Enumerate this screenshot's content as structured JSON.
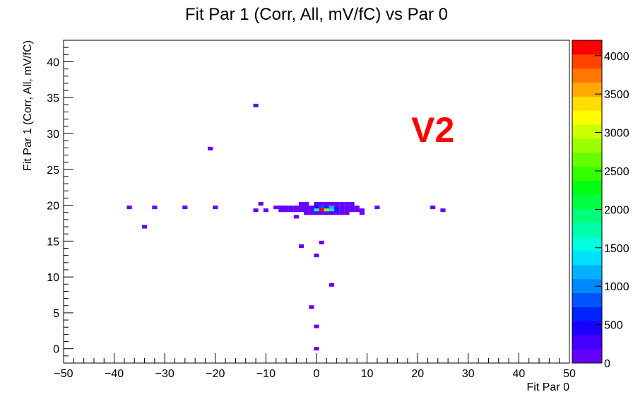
{
  "chart_data": {
    "type": "heatmap",
    "title": "Fit Par 1 (Corr, All, mV/fC) vs Par 0",
    "xlabel": "Fit Par 0",
    "ylabel": "Fit Par 1 (Corr, All, mV/fC)",
    "xlim": [
      -50,
      50
    ],
    "ylim": [
      -2,
      43
    ],
    "x_ticks": [
      -50,
      -40,
      -30,
      -20,
      -10,
      0,
      10,
      20,
      30,
      40,
      50
    ],
    "y_ticks": [
      0,
      5,
      10,
      15,
      20,
      25,
      30,
      35,
      40
    ],
    "x_tick_labels": [
      "−50",
      "−40",
      "−30",
      "−20",
      "−10",
      "0",
      "10",
      "20",
      "30",
      "40",
      "50"
    ],
    "y_tick_labels": [
      "0",
      "5",
      "10",
      "15",
      "20",
      "25",
      "30",
      "35",
      "40"
    ],
    "annotation": {
      "text": "V2",
      "x": 23,
      "y": 30.5,
      "color": "#ff0000"
    },
    "grid": false,
    "z_range": [
      0,
      4200
    ],
    "z_ticks": [
      0,
      500,
      1000,
      1500,
      2000,
      2500,
      3000,
      3500,
      4000
    ],
    "z_tick_labels": [
      "0",
      "500",
      "1000",
      "1500",
      "2000",
      "2500",
      "3000",
      "3500",
      "4000"
    ],
    "palette": [
      "#6600ff",
      "#4400ff",
      "#1a00ff",
      "#0022ff",
      "#0055ff",
      "#0088ff",
      "#00b2ff",
      "#00e0ff",
      "#00ffdd",
      "#00ffaa",
      "#00ff77",
      "#00ff44",
      "#00ff11",
      "#33ff00",
      "#66ff00",
      "#99ff00",
      "#ccff00",
      "#ffff00",
      "#ffdd00",
      "#ffaa00",
      "#ff7700",
      "#ff4400",
      "#ff0000"
    ],
    "cells": [
      {
        "x": -37,
        "y": 19.7,
        "z": 1
      },
      {
        "x": -32,
        "y": 19.7,
        "z": 1
      },
      {
        "x": -26,
        "y": 19.7,
        "z": 1
      },
      {
        "x": -20,
        "y": 19.7,
        "z": 1
      },
      {
        "x": -34,
        "y": 17.0,
        "z": 1
      },
      {
        "x": -21,
        "y": 27.9,
        "z": 1
      },
      {
        "x": -12,
        "y": 33.9,
        "z": 1
      },
      {
        "x": -11,
        "y": 20.2,
        "z": 1
      },
      {
        "x": -12,
        "y": 19.3,
        "z": 1
      },
      {
        "x": -10,
        "y": 19.3,
        "z": 1
      },
      {
        "x": -8,
        "y": 19.7,
        "z": 5
      },
      {
        "x": -7,
        "y": 19.7,
        "z": 8
      },
      {
        "x": -7,
        "y": 19.3,
        "z": 6
      },
      {
        "x": -6,
        "y": 19.7,
        "z": 12
      },
      {
        "x": -6,
        "y": 19.3,
        "z": 10
      },
      {
        "x": -5,
        "y": 19.7,
        "z": 15
      },
      {
        "x": -5,
        "y": 19.3,
        "z": 14
      },
      {
        "x": -4,
        "y": 19.7,
        "z": 20
      },
      {
        "x": -4,
        "y": 19.3,
        "z": 18
      },
      {
        "x": -3,
        "y": 19.7,
        "z": 25
      },
      {
        "x": -3,
        "y": 19.3,
        "z": 22
      },
      {
        "x": -3,
        "y": 20.2,
        "z": 8
      },
      {
        "x": -2,
        "y": 19.7,
        "z": 30
      },
      {
        "x": -2,
        "y": 19.3,
        "z": 40
      },
      {
        "x": -2,
        "y": 20.2,
        "z": 10
      },
      {
        "x": -2,
        "y": 18.9,
        "z": 12
      },
      {
        "x": -1,
        "y": 19.7,
        "z": 60
      },
      {
        "x": -1,
        "y": 19.3,
        "z": 80
      },
      {
        "x": -1,
        "y": 18.9,
        "z": 20
      },
      {
        "x": 0,
        "y": 19.7,
        "z": 400
      },
      {
        "x": 0,
        "y": 19.3,
        "z": 1500
      },
      {
        "x": 0,
        "y": 20.2,
        "z": 40
      },
      {
        "x": 0,
        "y": 18.9,
        "z": 60
      },
      {
        "x": 1,
        "y": 19.7,
        "z": 800
      },
      {
        "x": 1,
        "y": 19.3,
        "z": 4100
      },
      {
        "x": 1,
        "y": 20.2,
        "z": 50
      },
      {
        "x": 1,
        "y": 18.9,
        "z": 100
      },
      {
        "x": 2,
        "y": 19.7,
        "z": 600
      },
      {
        "x": 2,
        "y": 19.3,
        "z": 2800
      },
      {
        "x": 2,
        "y": 20.2,
        "z": 40
      },
      {
        "x": 2,
        "y": 18.9,
        "z": 80
      },
      {
        "x": 3,
        "y": 19.7,
        "z": 1100
      },
      {
        "x": 3,
        "y": 19.3,
        "z": 1400
      },
      {
        "x": 3,
        "y": 20.2,
        "z": 30
      },
      {
        "x": 3,
        "y": 18.9,
        "z": 50
      },
      {
        "x": 4,
        "y": 19.7,
        "z": 300
      },
      {
        "x": 4,
        "y": 19.3,
        "z": 700
      },
      {
        "x": 4,
        "y": 20.2,
        "z": 20
      },
      {
        "x": 4,
        "y": 18.9,
        "z": 30
      },
      {
        "x": 5,
        "y": 19.7,
        "z": 90
      },
      {
        "x": 5,
        "y": 19.3,
        "z": 150
      },
      {
        "x": 5,
        "y": 20.2,
        "z": 10
      },
      {
        "x": 5,
        "y": 18.9,
        "z": 15
      },
      {
        "x": 6,
        "y": 19.7,
        "z": 40
      },
      {
        "x": 6,
        "y": 19.3,
        "z": 30
      },
      {
        "x": 6,
        "y": 20.2,
        "z": 5
      },
      {
        "x": 6,
        "y": 18.9,
        "z": 8
      },
      {
        "x": 7,
        "y": 19.7,
        "z": 20
      },
      {
        "x": 7,
        "y": 19.3,
        "z": 15
      },
      {
        "x": 7,
        "y": 20.2,
        "z": 3
      },
      {
        "x": 8,
        "y": 19.7,
        "z": 10
      },
      {
        "x": 8,
        "y": 19.3,
        "z": 8
      },
      {
        "x": 9,
        "y": 19.3,
        "z": 3
      },
      {
        "x": 9,
        "y": 18.9,
        "z": 2
      },
      {
        "x": 12,
        "y": 19.7,
        "z": 1
      },
      {
        "x": 23,
        "y": 19.7,
        "z": 1
      },
      {
        "x": 25,
        "y": 19.3,
        "z": 1
      },
      {
        "x": -4,
        "y": 18.4,
        "z": 1
      },
      {
        "x": 1,
        "y": 14.8,
        "z": 1
      },
      {
        "x": -3,
        "y": 14.3,
        "z": 1
      },
      {
        "x": 0,
        "y": 13.0,
        "z": 1
      },
      {
        "x": 3,
        "y": 8.9,
        "z": 1
      },
      {
        "x": -1,
        "y": 5.8,
        "z": 1
      },
      {
        "x": 0,
        "y": 3.1,
        "z": 1
      },
      {
        "x": 0,
        "y": 0.0,
        "z": 1
      }
    ]
  }
}
